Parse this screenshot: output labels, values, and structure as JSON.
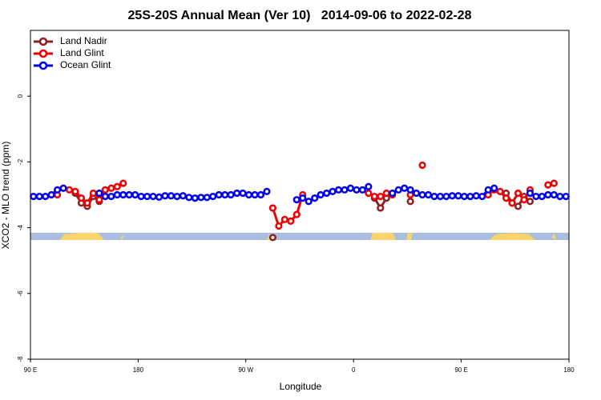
{
  "chart_data": {
    "type": "line",
    "title": "25S-20S Annual Mean (Ver 10)   2014-09-06 to 2022-02-28",
    "x_label": "Longitude",
    "y_label": "XCO2 - MLO trend (ppm)",
    "xlim": [
      90,
      540
    ],
    "ylim": [
      -8,
      2
    ],
    "xticks": [
      {
        "value": 90,
        "label": "90 E"
      },
      180,
      {
        "value": 270,
        "label": "90 W"
      },
      {
        "value": 360,
        "label": "0"
      },
      {
        "value": 450,
        "label": "90 E"
      },
      {
        "value": 540,
        "label": "180"
      }
    ],
    "yticks": [
      0,
      -2,
      -4,
      -6,
      -8
    ],
    "legend": "top-left",
    "x": [
      92.5,
      97.5,
      102.5,
      107.5,
      112.5,
      117.5,
      122.5,
      127.5,
      132.5,
      137.5,
      142.5,
      147.5,
      152.5,
      157.5,
      162.5,
      167.5,
      172.5,
      177.5,
      182.5,
      187.5,
      192.5,
      197.5,
      202.5,
      207.5,
      212.5,
      217.5,
      222.5,
      227.5,
      232.5,
      237.5,
      242.5,
      247.5,
      252.5,
      257.5,
      262.5,
      267.5,
      272.5,
      277.5,
      282.5,
      287.5,
      292.5,
      297.5,
      302.5,
      307.5,
      312.5,
      317.5,
      322.5,
      327.5,
      332.5,
      337.5,
      342.5,
      347.5,
      352.5,
      357.5,
      362.5,
      367.5,
      372.5,
      377.5,
      382.5,
      387.5,
      392.5,
      397.5,
      402.5,
      407.5,
      412.5,
      417.5,
      422.5,
      427.5,
      432.5,
      437.5,
      442.5,
      447.5,
      452.5,
      457.5,
      462.5,
      467.5,
      472.5,
      477.5,
      482.5,
      487.5,
      492.5,
      497.5,
      502.5,
      507.5,
      512.5,
      517.5,
      522.5,
      527.5,
      532.5,
      537.5
    ],
    "series": [
      {
        "name": "Land Nadir",
        "color": "#8b2323",
        "values": [
          null,
          null,
          null,
          null,
          null,
          null,
          null,
          -2.95,
          -3.25,
          -3.35,
          -3.05,
          -3.2,
          null,
          null,
          null,
          null,
          null,
          null,
          null,
          null,
          null,
          null,
          null,
          null,
          null,
          null,
          null,
          null,
          null,
          null,
          null,
          null,
          null,
          null,
          null,
          null,
          null,
          null,
          null,
          null,
          -4.3,
          null,
          null,
          null,
          null,
          null,
          null,
          null,
          null,
          null,
          null,
          null,
          null,
          null,
          null,
          null,
          null,
          -3.1,
          -3.4,
          -3.1,
          null,
          null,
          null,
          -3.2,
          null,
          null,
          null,
          null,
          null,
          null,
          null,
          null,
          null,
          null,
          null,
          null,
          null,
          null,
          null,
          -2.95,
          -3.25,
          -3.35,
          -3.05,
          -3.2,
          null,
          null,
          null,
          null,
          null,
          null
        ]
      },
      {
        "name": "Land Glint",
        "color": "#ee0000",
        "values": [
          null,
          null,
          null,
          null,
          -3.0,
          null,
          -2.85,
          -2.9,
          -3.1,
          -3.25,
          -2.95,
          -3.15,
          -2.85,
          -2.8,
          -2.75,
          -2.65,
          null,
          null,
          null,
          null,
          null,
          null,
          null,
          null,
          null,
          null,
          null,
          null,
          null,
          null,
          null,
          null,
          null,
          null,
          null,
          null,
          null,
          null,
          null,
          null,
          -3.4,
          -3.95,
          -3.75,
          -3.8,
          -3.6,
          -3.0,
          null,
          null,
          null,
          null,
          null,
          null,
          null,
          null,
          null,
          null,
          -2.95,
          -3.05,
          -3.05,
          -2.95,
          -3.0,
          null,
          null,
          -3.0,
          null,
          -2.1,
          null,
          null,
          null,
          null,
          null,
          null,
          null,
          null,
          null,
          null,
          -3.0,
          -2.85,
          -2.9,
          -3.1,
          -3.25,
          -2.95,
          -3.15,
          -2.85,
          null,
          null,
          -2.7,
          -2.65,
          null,
          null
        ]
      },
      {
        "name": "Ocean Glint",
        "color": "#0000ee",
        "values": [
          -3.05,
          -3.05,
          -3.05,
          -3.0,
          -2.85,
          -2.8,
          null,
          null,
          null,
          null,
          null,
          -2.95,
          -3.05,
          -3.05,
          -3.0,
          -3.0,
          -3.0,
          -3.0,
          -3.05,
          -3.05,
          -3.05,
          -3.07,
          -3.03,
          -3.03,
          -3.05,
          -3.03,
          -3.08,
          -3.1,
          -3.08,
          -3.08,
          -3.05,
          -3.0,
          -3.0,
          -3.0,
          -2.95,
          -2.95,
          -3.0,
          -3.0,
          -3.0,
          -2.9,
          null,
          null,
          null,
          null,
          -3.15,
          -3.1,
          -3.2,
          -3.1,
          -3.0,
          -2.95,
          -2.9,
          -2.85,
          -2.85,
          -2.8,
          -2.85,
          -2.85,
          -2.75,
          null,
          null,
          null,
          -2.95,
          -2.85,
          -2.8,
          -2.85,
          -2.95,
          -3.0,
          -3.0,
          -3.05,
          -3.05,
          -3.05,
          -3.03,
          -3.03,
          -3.05,
          -3.05,
          -3.03,
          -3.05,
          -2.85,
          -2.8,
          null,
          null,
          null,
          null,
          null,
          -2.95,
          -3.05,
          -3.05,
          -3.0,
          -3.0,
          -3.05,
          -3.05
        ]
      }
    ]
  }
}
